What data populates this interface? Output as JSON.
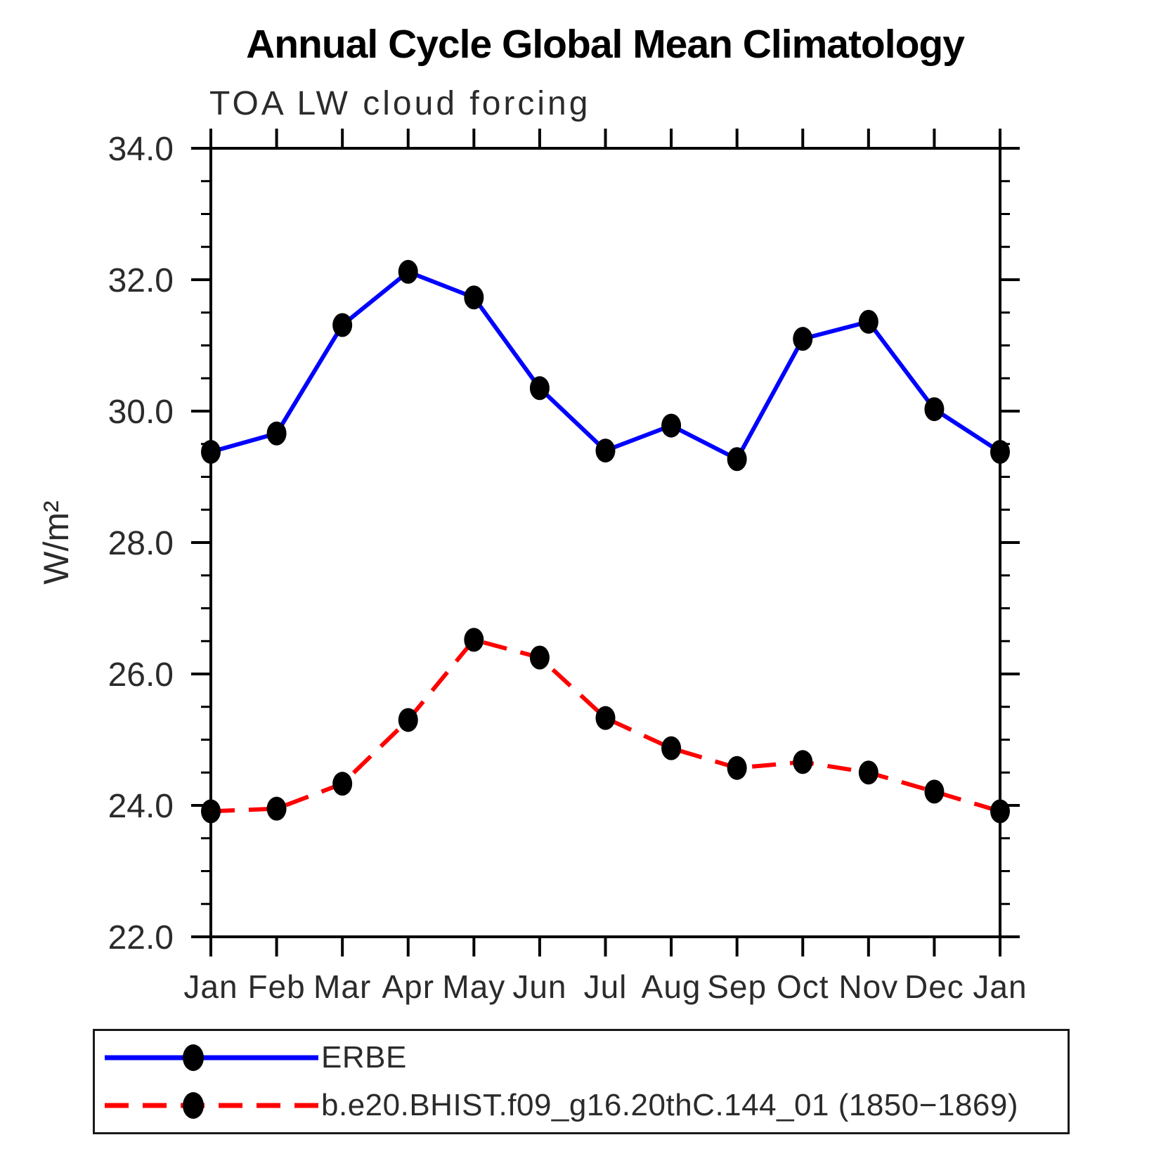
{
  "title": "Annual Cycle Global Mean Climatology",
  "subtitle": "TOA LW cloud forcing",
  "ylabel": "W/m²",
  "chart_data": {
    "type": "line",
    "categories": [
      "Jan",
      "Feb",
      "Mar",
      "Apr",
      "May",
      "Jun",
      "Jul",
      "Aug",
      "Sep",
      "Oct",
      "Nov",
      "Dec",
      "Jan"
    ],
    "series": [
      {
        "name": "ERBE",
        "color": "#0000ff",
        "style": "solid",
        "values": [
          29.38,
          29.66,
          31.31,
          32.12,
          31.73,
          30.35,
          29.4,
          29.78,
          29.27,
          31.1,
          31.36,
          30.03,
          29.38
        ]
      },
      {
        "name": "b.e20.BHIST.f09_g16.20thC.144_01 (1850−1869)",
        "color": "#ff0000",
        "style": "dashed",
        "values": [
          23.91,
          23.95,
          24.33,
          25.3,
          26.52,
          26.25,
          25.33,
          24.87,
          24.57,
          24.66,
          24.5,
          24.21,
          23.91
        ]
      }
    ],
    "ylim": [
      22.0,
      34.0
    ],
    "y_major_ticks": [
      22.0,
      24.0,
      26.0,
      28.0,
      30.0,
      32.0,
      34.0
    ],
    "y_tick_labels": [
      "22.0",
      "24.0",
      "26.0",
      "28.0",
      "30.0",
      "32.0",
      "34.0"
    ],
    "y_minor_step": 0.5,
    "marker_color": "#000000",
    "grid": "off",
    "legend_position": "bottom"
  },
  "legend": {
    "items": [
      {
        "label": "ERBE"
      },
      {
        "label": "b.e20.BHIST.f09_g16.20thC.144_01 (1850−1869)"
      }
    ]
  }
}
